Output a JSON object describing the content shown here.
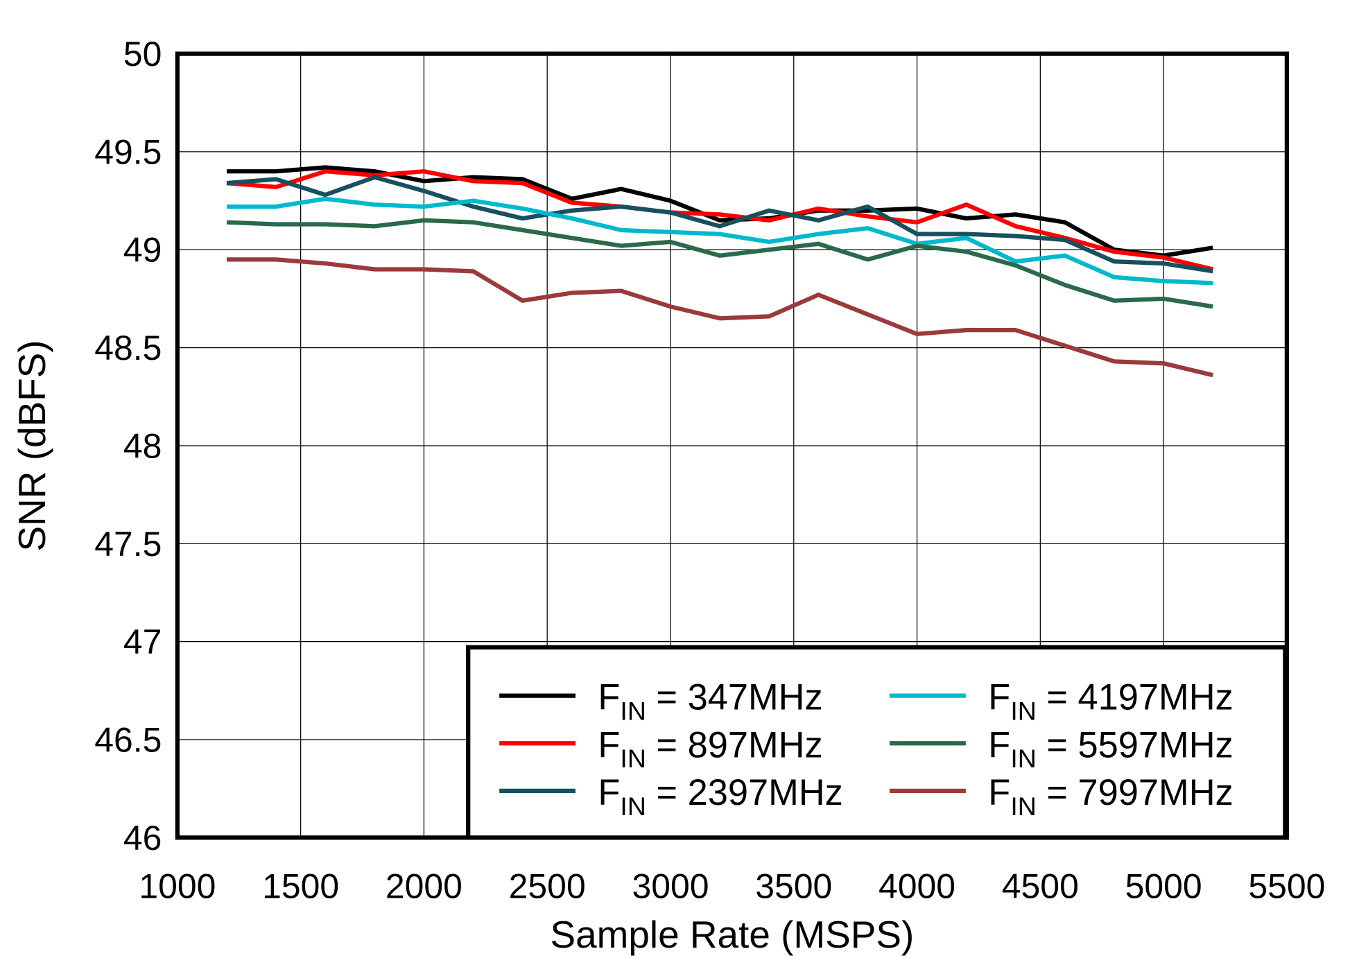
{
  "chart_data": {
    "type": "line",
    "title": "",
    "xlabel": "Sample Rate  (MSPS)",
    "ylabel": "SNR  (dBFS)",
    "xlim": [
      1000,
      5500
    ],
    "ylim": [
      46,
      50
    ],
    "xticks": [
      1000,
      1500,
      2000,
      2500,
      3000,
      3500,
      4000,
      4500,
      5000,
      5500
    ],
    "yticks": [
      46,
      46.5,
      47,
      47.5,
      48,
      48.5,
      49,
      49.5,
      50
    ],
    "grid": true,
    "legend_position": "bottom-right",
    "x": [
      1200,
      1400,
      1600,
      1800,
      2000,
      2200,
      2400,
      2600,
      2800,
      3000,
      3200,
      3400,
      3600,
      3800,
      4000,
      4200,
      4400,
      4600,
      4800,
      5000,
      5200
    ],
    "series": [
      {
        "name": "F_IN = 347MHz",
        "label_main": "F",
        "label_sub": "IN",
        "label_rest": " = 347MHz",
        "color": "#000000",
        "values": [
          49.4,
          49.4,
          49.42,
          49.4,
          49.35,
          49.37,
          49.36,
          49.26,
          49.31,
          49.25,
          49.15,
          49.16,
          49.2,
          49.2,
          49.21,
          49.16,
          49.18,
          49.14,
          49.0,
          48.97,
          49.01
        ]
      },
      {
        "name": "F_IN = 897MHz",
        "label_main": "F",
        "label_sub": "IN",
        "label_rest": " = 897MHz",
        "color": "#ff0000",
        "values": [
          49.34,
          49.32,
          49.4,
          49.38,
          49.4,
          49.35,
          49.34,
          49.24,
          49.22,
          49.19,
          49.18,
          49.15,
          49.21,
          49.17,
          49.14,
          49.23,
          49.12,
          49.06,
          48.99,
          48.96,
          48.9
        ]
      },
      {
        "name": "F_IN = 2397MHz",
        "label_main": "F",
        "label_sub": "IN",
        "label_rest": " = 2397MHz",
        "color": "#17505f",
        "values": [
          49.34,
          49.36,
          49.28,
          49.37,
          49.3,
          49.22,
          49.16,
          49.2,
          49.22,
          49.19,
          49.12,
          49.2,
          49.15,
          49.22,
          49.08,
          49.08,
          49.07,
          49.05,
          48.94,
          48.93,
          48.89
        ]
      },
      {
        "name": "F_IN = 4197MHz",
        "label_main": "F",
        "label_sub": "IN",
        "label_rest": " = 4197MHz",
        "color": "#00b9cc",
        "values": [
          49.22,
          49.22,
          49.26,
          49.23,
          49.22,
          49.25,
          49.21,
          49.16,
          49.1,
          49.09,
          49.08,
          49.04,
          49.08,
          49.11,
          49.03,
          49.06,
          48.94,
          48.97,
          48.86,
          48.84,
          48.83
        ]
      },
      {
        "name": "F_IN = 5597MHz",
        "label_main": "F",
        "label_sub": "IN",
        "label_rest": " = 5597MHz",
        "color": "#2a6a4a",
        "values": [
          49.14,
          49.13,
          49.13,
          49.12,
          49.15,
          49.14,
          49.1,
          49.06,
          49.02,
          49.04,
          48.97,
          49.0,
          49.03,
          48.95,
          49.02,
          48.99,
          48.92,
          48.82,
          48.74,
          48.75,
          48.71
        ]
      },
      {
        "name": "F_IN = 7997MHz",
        "label_main": "F",
        "label_sub": "IN",
        "label_rest": " = 7997MHz",
        "color": "#9a3a3c",
        "values": [
          48.95,
          48.95,
          48.93,
          48.9,
          48.9,
          48.89,
          48.74,
          48.78,
          48.79,
          48.71,
          48.65,
          48.66,
          48.77,
          48.67,
          48.57,
          48.59,
          48.59,
          48.51,
          48.43,
          48.42,
          48.36
        ]
      }
    ]
  }
}
